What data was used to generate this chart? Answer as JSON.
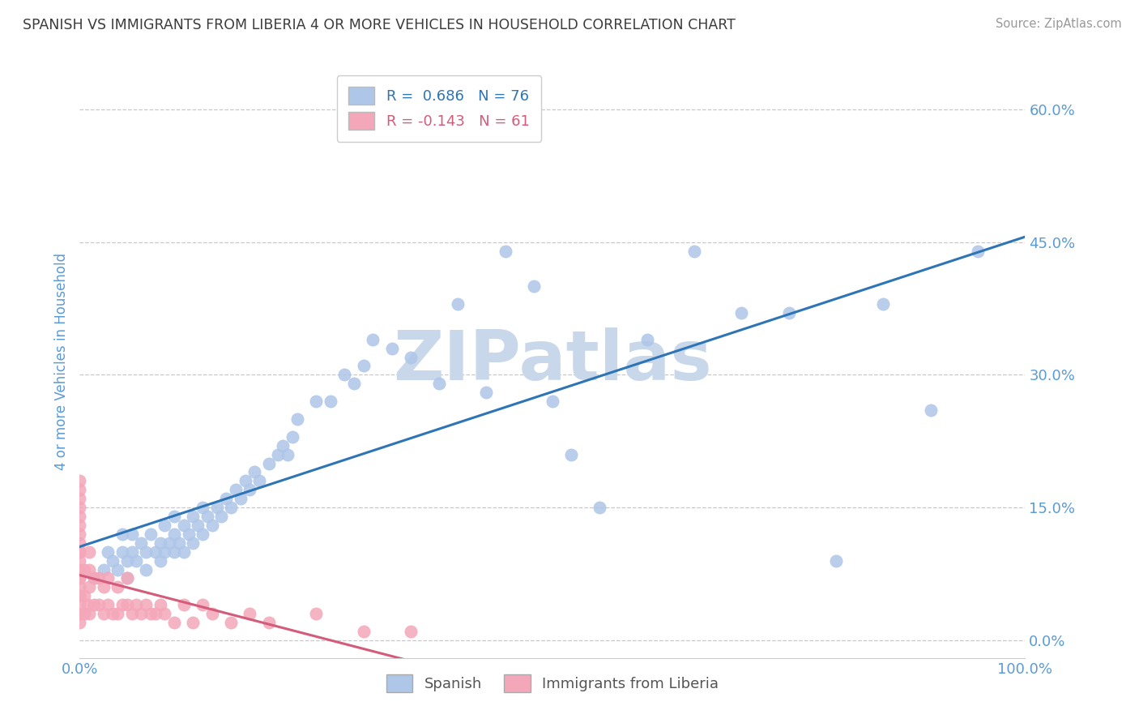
{
  "title": "SPANISH VS IMMIGRANTS FROM LIBERIA 4 OR MORE VEHICLES IN HOUSEHOLD CORRELATION CHART",
  "source": "Source: ZipAtlas.com",
  "ylabel": "4 or more Vehicles in Household",
  "R_spanish": 0.686,
  "N_spanish": 76,
  "R_liberia": -0.143,
  "N_liberia": 61,
  "title_color": "#3c3c3c",
  "axis_color": "#5b9bd5",
  "grid_color": "#c8c8c8",
  "spanish_color": "#aec6e8",
  "liberia_color": "#f4a7b9",
  "spanish_line_color": "#2e75b6",
  "liberia_line_color": "#d45b7a",
  "liberia_line_dash": "--",
  "watermark_text": "ZIPatlas",
  "watermark_color": "#c8d8ea",
  "xlim": [
    0.0,
    1.0
  ],
  "ylim": [
    -0.02,
    0.65
  ],
  "yticks": [
    0.0,
    0.15,
    0.3,
    0.45,
    0.6
  ],
  "ytick_labels": [
    "0.0%",
    "15.0%",
    "30.0%",
    "45.0%",
    "60.0%"
  ],
  "xticks": [
    0.0,
    1.0
  ],
  "xtick_labels": [
    "0.0%",
    "100.0%"
  ],
  "spanish_scatter_x": [
    0.015,
    0.025,
    0.03,
    0.035,
    0.04,
    0.045,
    0.045,
    0.05,
    0.05,
    0.055,
    0.055,
    0.06,
    0.065,
    0.07,
    0.07,
    0.075,
    0.08,
    0.085,
    0.085,
    0.09,
    0.09,
    0.095,
    0.1,
    0.1,
    0.1,
    0.105,
    0.11,
    0.11,
    0.115,
    0.12,
    0.12,
    0.125,
    0.13,
    0.13,
    0.135,
    0.14,
    0.145,
    0.15,
    0.155,
    0.16,
    0.165,
    0.17,
    0.175,
    0.18,
    0.185,
    0.19,
    0.2,
    0.21,
    0.215,
    0.22,
    0.225,
    0.23,
    0.25,
    0.265,
    0.28,
    0.29,
    0.3,
    0.31,
    0.33,
    0.35,
    0.38,
    0.4,
    0.43,
    0.45,
    0.48,
    0.5,
    0.52,
    0.55,
    0.6,
    0.65,
    0.7,
    0.75,
    0.8,
    0.85,
    0.9,
    0.95
  ],
  "spanish_scatter_y": [
    0.07,
    0.08,
    0.1,
    0.09,
    0.08,
    0.1,
    0.12,
    0.07,
    0.09,
    0.1,
    0.12,
    0.09,
    0.11,
    0.08,
    0.1,
    0.12,
    0.1,
    0.09,
    0.11,
    0.1,
    0.13,
    0.11,
    0.1,
    0.12,
    0.14,
    0.11,
    0.1,
    0.13,
    0.12,
    0.11,
    0.14,
    0.13,
    0.12,
    0.15,
    0.14,
    0.13,
    0.15,
    0.14,
    0.16,
    0.15,
    0.17,
    0.16,
    0.18,
    0.17,
    0.19,
    0.18,
    0.2,
    0.21,
    0.22,
    0.21,
    0.23,
    0.25,
    0.27,
    0.27,
    0.3,
    0.29,
    0.31,
    0.34,
    0.33,
    0.32,
    0.29,
    0.38,
    0.28,
    0.44,
    0.4,
    0.27,
    0.21,
    0.15,
    0.34,
    0.44,
    0.37,
    0.37,
    0.09,
    0.38,
    0.26,
    0.44
  ],
  "liberia_scatter_x": [
    0.0,
    0.0,
    0.0,
    0.0,
    0.0,
    0.0,
    0.0,
    0.0,
    0.0,
    0.0,
    0.0,
    0.0,
    0.0,
    0.0,
    0.0,
    0.0,
    0.0,
    0.0,
    0.0,
    0.0,
    0.005,
    0.005,
    0.005,
    0.008,
    0.01,
    0.01,
    0.01,
    0.01,
    0.015,
    0.015,
    0.02,
    0.02,
    0.025,
    0.025,
    0.03,
    0.03,
    0.035,
    0.04,
    0.04,
    0.045,
    0.05,
    0.05,
    0.055,
    0.06,
    0.065,
    0.07,
    0.075,
    0.08,
    0.085,
    0.09,
    0.1,
    0.11,
    0.12,
    0.13,
    0.14,
    0.16,
    0.18,
    0.2,
    0.25,
    0.3,
    0.35
  ],
  "liberia_scatter_y": [
    0.02,
    0.03,
    0.04,
    0.05,
    0.06,
    0.07,
    0.08,
    0.09,
    0.1,
    0.11,
    0.12,
    0.13,
    0.14,
    0.15,
    0.16,
    0.17,
    0.18,
    0.05,
    0.07,
    0.1,
    0.03,
    0.05,
    0.08,
    0.04,
    0.03,
    0.06,
    0.08,
    0.1,
    0.04,
    0.07,
    0.04,
    0.07,
    0.03,
    0.06,
    0.04,
    0.07,
    0.03,
    0.03,
    0.06,
    0.04,
    0.04,
    0.07,
    0.03,
    0.04,
    0.03,
    0.04,
    0.03,
    0.03,
    0.04,
    0.03,
    0.02,
    0.04,
    0.02,
    0.04,
    0.03,
    0.02,
    0.03,
    0.02,
    0.03,
    0.01,
    0.01
  ]
}
